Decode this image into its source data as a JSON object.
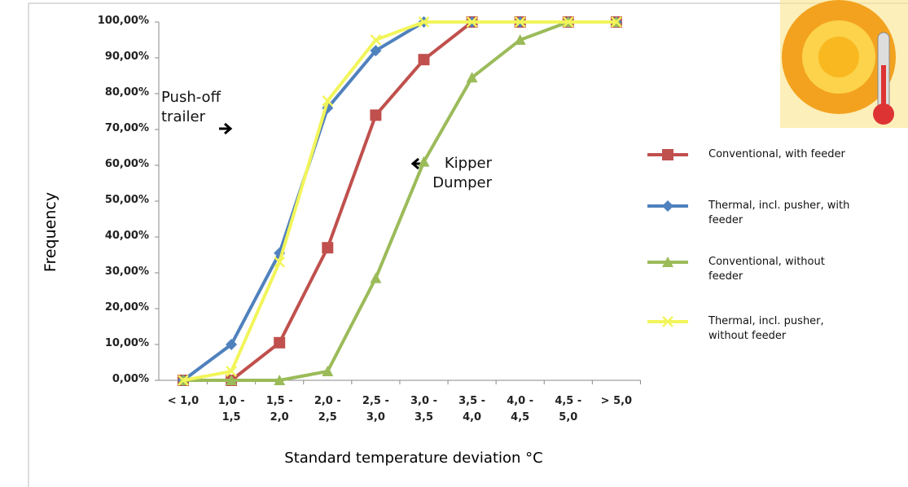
{
  "chart_data": {
    "type": "line",
    "y_label": "Frequency",
    "x_label": "Standard temperature deviation °C",
    "categories": [
      "< 1,0",
      "1,0 - 1,5",
      "1,5 - 2,0",
      "2,0 - 2,5",
      "2,5 - 3,0",
      "3,0 - 3,5",
      "3,5 - 4,0",
      "4,0 - 4,5",
      "4,5 - 5,0",
      "> 5,0"
    ],
    "ylim": [
      0,
      100
    ],
    "yticks": [
      {
        "value": 0,
        "label": "0,00%"
      },
      {
        "value": 10,
        "label": "10,00%"
      },
      {
        "value": 20,
        "label": "20,00%"
      },
      {
        "value": 30,
        "label": "30,00%"
      },
      {
        "value": 40,
        "label": "40,00%"
      },
      {
        "value": 50,
        "label": "50,00%"
      },
      {
        "value": 60,
        "label": "60,00%"
      },
      {
        "value": 70,
        "label": "70,00%"
      },
      {
        "value": 80,
        "label": "80,00%"
      },
      {
        "value": 90,
        "label": "90,00%"
      },
      {
        "value": 100,
        "label": "100,00%"
      }
    ],
    "annotations": [
      "Push-off trailer",
      "Kipper Dumper"
    ],
    "series": [
      {
        "name": "Conventional, with feeder",
        "color": "#c0504d",
        "marker": "square",
        "values": [
          0,
          0,
          10.5,
          37,
          74,
          89.5,
          100,
          100,
          100,
          100
        ]
      },
      {
        "name": "Thermal, incl. pusher, with feeder",
        "color": "#4f81bd",
        "marker": "diamond",
        "values": [
          0,
          10,
          35.5,
          76,
          92,
          100,
          100,
          100,
          100,
          100
        ]
      },
      {
        "name": "Conventional, without feeder",
        "color": "#9bbb59",
        "marker": "triangle",
        "values": [
          0,
          0,
          0,
          2.5,
          28.5,
          61,
          84.5,
          95,
          100,
          100
        ]
      },
      {
        "name": "Thermal, incl. pusher, without feeder",
        "color": "#f2f55a",
        "marker": "x",
        "values": [
          0,
          2.5,
          33,
          78,
          95,
          100,
          100,
          100,
          100,
          100
        ]
      }
    ]
  }
}
